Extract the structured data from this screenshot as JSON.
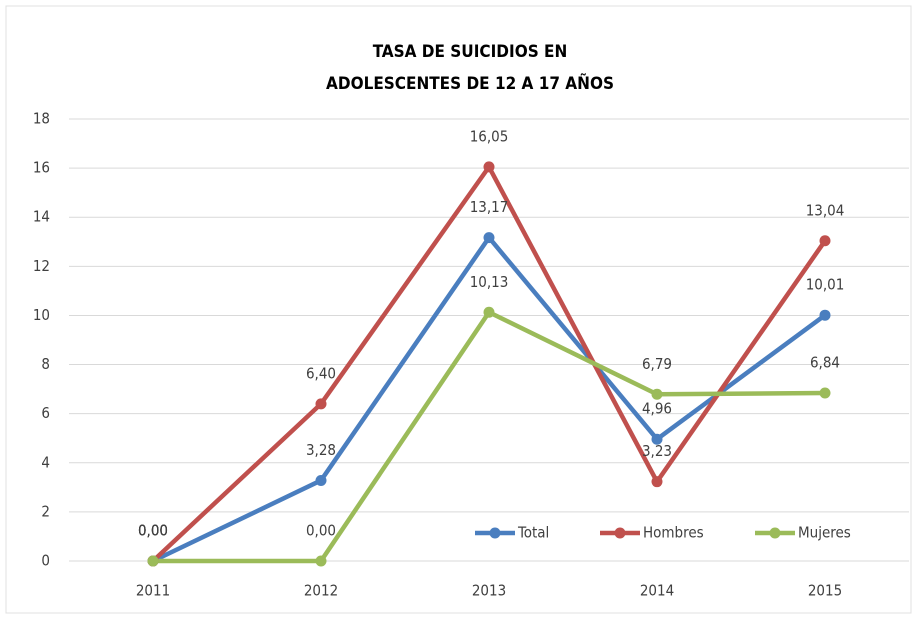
{
  "chart_data": {
    "type": "line",
    "title": [
      "TASA DE SUICIDIOS EN",
      "ADOLESCENTES DE 12 A 17 AÑOS"
    ],
    "categories": [
      "2011",
      "2012",
      "2013",
      "2014",
      "2015"
    ],
    "series": [
      {
        "name": "Total",
        "color": "#4a7ebf",
        "values": [
          0,
          3.28,
          13.17,
          4.96,
          10.01
        ],
        "value_labels": [
          "0,00",
          "3,28",
          "13,17",
          "4,96",
          "10,01"
        ]
      },
      {
        "name": "Hombres",
        "color": "#c0504d",
        "values": [
          0,
          6.4,
          16.05,
          3.23,
          13.04
        ],
        "value_labels": [
          "0,00",
          "6,40",
          "16,05",
          "3,23",
          "13,04"
        ]
      },
      {
        "name": "Mujeres",
        "color": "#9bbb59",
        "values": [
          0,
          0,
          10.13,
          6.79,
          6.84
        ],
        "value_labels": [
          "0,00",
          "0,00",
          "10,13",
          "6,79",
          "6,84"
        ]
      }
    ],
    "ylim": [
      0,
      18
    ],
    "yticks": [
      0,
      2,
      4,
      6,
      8,
      10,
      12,
      14,
      16,
      18
    ],
    "grid": true,
    "legend": "lower right"
  }
}
